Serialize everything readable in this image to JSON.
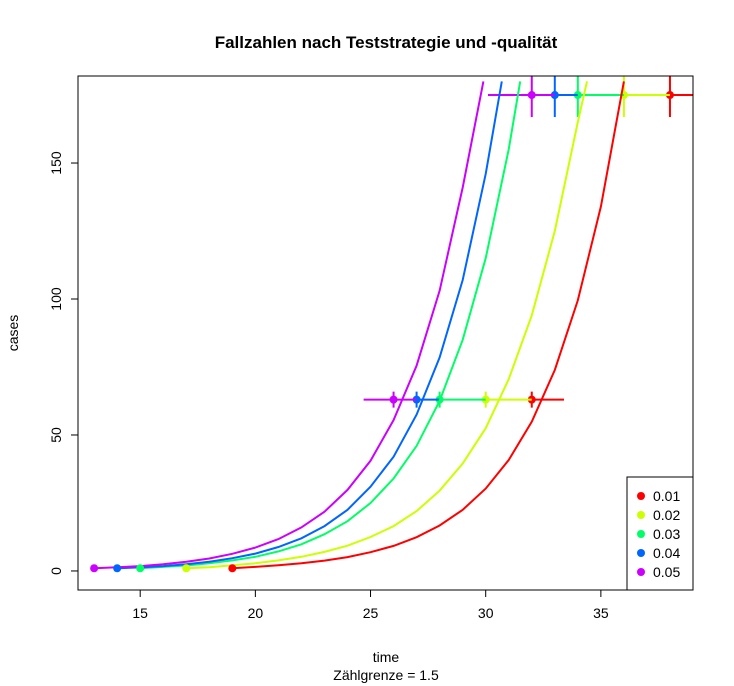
{
  "chart_data": {
    "type": "line",
    "title": "Fallzahlen nach Teststrategie und -qualität",
    "xlabel": "time",
    "ylabel": "cases",
    "subtitle": "Zählgrenze =  1.5",
    "xlim": [
      12.3,
      39
    ],
    "ylim": [
      -7,
      182
    ],
    "x_ticks": [
      15,
      20,
      25,
      30,
      35
    ],
    "y_ticks": [
      0,
      50,
      100,
      150
    ],
    "grid": false,
    "legend_position": "bottom-right",
    "series": [
      {
        "name": "0.01",
        "color": "#FF0000",
        "curve": [
          [
            19,
            1
          ],
          [
            20,
            1.5
          ],
          [
            21,
            2.1
          ],
          [
            22,
            2.8
          ],
          [
            23,
            3.8
          ],
          [
            24,
            5.1
          ],
          [
            25,
            6.9
          ],
          [
            26,
            9.2
          ],
          [
            27,
            12.4
          ],
          [
            28,
            16.7
          ],
          [
            29,
            22.5
          ],
          [
            30,
            30.3
          ],
          [
            31,
            40.8
          ],
          [
            32,
            54.9
          ],
          [
            33,
            73.9
          ],
          [
            34,
            99.5
          ],
          [
            35,
            134
          ],
          [
            36,
            180
          ]
        ],
        "start_point": [
          19,
          1
        ],
        "marker_lower": [
          32,
          63
        ],
        "marker_upper": [
          38,
          175
        ],
        "range_lower": [
          32,
          33.4
        ],
        "range_upper": [
          38,
          39
        ]
      },
      {
        "name": "0.02",
        "color": "#CCFF00",
        "curve": [
          [
            17,
            1
          ],
          [
            18,
            1.4
          ],
          [
            19,
            2.1
          ],
          [
            20,
            2.8
          ],
          [
            21,
            3.9
          ],
          [
            22,
            5.2
          ],
          [
            23,
            7
          ],
          [
            24,
            9.3
          ],
          [
            25,
            12.5
          ],
          [
            26,
            16.5
          ],
          [
            27,
            22
          ],
          [
            28,
            29.5
          ],
          [
            29,
            39.5
          ],
          [
            30,
            52.5
          ],
          [
            31,
            70.5
          ],
          [
            32,
            94
          ],
          [
            33,
            125
          ],
          [
            34,
            165
          ],
          [
            34.4,
            180
          ]
        ],
        "start_point": [
          17,
          1
        ],
        "marker_lower": [
          30,
          63
        ],
        "marker_upper": [
          36,
          175
        ],
        "range_lower": [
          30,
          32
        ],
        "range_upper": [
          36,
          38
        ]
      },
      {
        "name": "0.03",
        "color": "#00FF66",
        "curve": [
          [
            15,
            1
          ],
          [
            16,
            1.5
          ],
          [
            17,
            2
          ],
          [
            18,
            2.8
          ],
          [
            19,
            3.9
          ],
          [
            20,
            5.2
          ],
          [
            21,
            7.2
          ],
          [
            22,
            9.8
          ],
          [
            23,
            13.5
          ],
          [
            24,
            18.3
          ],
          [
            25,
            25
          ],
          [
            26,
            34
          ],
          [
            27,
            46
          ],
          [
            28,
            62.5
          ],
          [
            29,
            85
          ],
          [
            30,
            115
          ],
          [
            31,
            155
          ],
          [
            31.5,
            180
          ]
        ],
        "start_point": [
          15,
          1
        ],
        "marker_lower": [
          28,
          63
        ],
        "marker_upper": [
          34,
          175
        ],
        "range_lower": [
          28,
          30
        ],
        "range_upper": [
          34,
          36
        ]
      },
      {
        "name": "0.04",
        "color": "#0066FF",
        "curve": [
          [
            14,
            1
          ],
          [
            15,
            1.3
          ],
          [
            16,
            1.8
          ],
          [
            17,
            2.5
          ],
          [
            18,
            3.4
          ],
          [
            19,
            4.7
          ],
          [
            20,
            6.4
          ],
          [
            21,
            8.8
          ],
          [
            22,
            12
          ],
          [
            23,
            16.5
          ],
          [
            24,
            22.5
          ],
          [
            25,
            31
          ],
          [
            26,
            42
          ],
          [
            27,
            57.5
          ],
          [
            28,
            78.5
          ],
          [
            29,
            107
          ],
          [
            30,
            146
          ],
          [
            30.7,
            180
          ]
        ],
        "start_point": [
          14,
          1
        ],
        "marker_lower": [
          27,
          63
        ],
        "marker_upper": [
          33,
          175
        ],
        "range_lower": [
          27,
          28
        ],
        "range_upper": [
          33,
          34
        ]
      },
      {
        "name": "0.05",
        "color": "#CC00FF",
        "curve": [
          [
            13,
            1
          ],
          [
            14,
            1.35
          ],
          [
            15,
            1.8
          ],
          [
            16,
            2.5
          ],
          [
            17,
            3.4
          ],
          [
            18,
            4.6
          ],
          [
            19,
            6.3
          ],
          [
            20,
            8.6
          ],
          [
            21,
            11.7
          ],
          [
            22,
            16
          ],
          [
            23,
            21.8
          ],
          [
            24,
            29.8
          ],
          [
            25,
            40.5
          ],
          [
            26,
            55.5
          ],
          [
            27,
            75.5
          ],
          [
            28,
            103
          ],
          [
            29,
            141
          ],
          [
            29.9,
            180
          ]
        ],
        "start_point": [
          13,
          1
        ],
        "marker_lower": [
          26,
          63
        ],
        "marker_upper": [
          32,
          175
        ],
        "range_lower": [
          24.7,
          27
        ],
        "range_upper": [
          30.1,
          33
        ]
      }
    ]
  }
}
